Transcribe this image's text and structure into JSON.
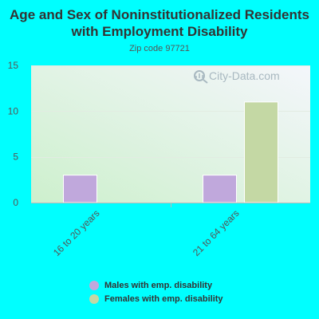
{
  "chart_data": {
    "type": "bar",
    "title": "Age and Sex of Noninstitutionalized Residents with Employment Disability",
    "subtitle": "Zip code 97721",
    "categories": [
      "16 to 20 years",
      "21 to 64 years"
    ],
    "series": [
      {
        "name": "Males with emp. disability",
        "values": [
          3,
          3
        ],
        "color": "#c0a8dc"
      },
      {
        "name": "Females with emp. disability",
        "values": [
          0,
          11
        ],
        "color": "#c4d8a4"
      }
    ],
    "yticks": [
      0,
      5,
      10,
      15
    ],
    "ylim": [
      0,
      15
    ],
    "grid": true,
    "legend_position": "bottom"
  },
  "watermark": {
    "text": "City-Data.com",
    "icon": "magnifier-chart-icon"
  }
}
